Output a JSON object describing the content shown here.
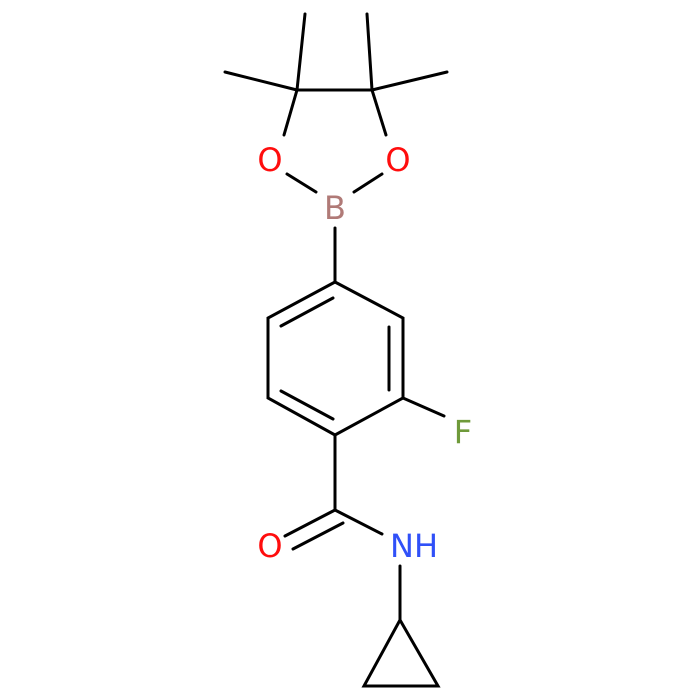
{
  "atoms": [
    "O",
    "O",
    "B",
    "F",
    "O",
    "NH"
  ]
}
